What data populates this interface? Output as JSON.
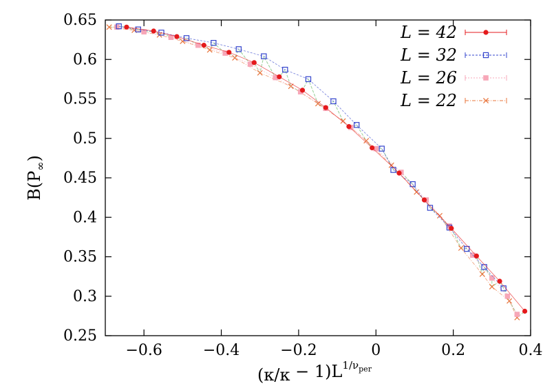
{
  "chart_data": {
    "type": "scatter",
    "xlabel": "(κ/κper − 1)L1/νper",
    "xlabel_parts": {
      "open": "(κ/κ",
      "sub1": "per",
      "mid": " − 1)L",
      "sup": "1/ν",
      "supsub": "per"
    },
    "ylabel": "B(P∞)",
    "ylabel_parts": {
      "main": "B(P",
      "sub": "∞",
      "close": ")"
    },
    "xlim": [
      -0.7,
      0.4
    ],
    "ylim": [
      0.25,
      0.65
    ],
    "xticks": [
      "−0.6",
      "−0.4",
      "−0.2",
      "0",
      "0.2",
      "0.4"
    ],
    "xtick_values": [
      -0.6,
      -0.4,
      -0.2,
      0,
      0.2,
      0.4
    ],
    "yticks": [
      "0.25",
      "0.3",
      "0.35",
      "0.4",
      "0.45",
      "0.5",
      "0.55",
      "0.6",
      "0.65"
    ],
    "ytick_values": [
      0.25,
      0.3,
      0.35,
      0.4,
      0.45,
      0.5,
      0.55,
      0.6,
      0.65
    ],
    "grid": false,
    "legend_position": "top-right",
    "series": [
      {
        "name": "L = 42",
        "color": "#e41a1c",
        "marker": "filled-circle",
        "x": [
          -0.645,
          -0.575,
          -0.515,
          -0.445,
          -0.38,
          -0.315,
          -0.25,
          -0.19,
          -0.13,
          -0.07,
          -0.01,
          0.06,
          0.125,
          0.195,
          0.26,
          0.32,
          0.385
        ],
        "y": [
          0.641,
          0.636,
          0.629,
          0.618,
          0.609,
          0.596,
          0.578,
          0.561,
          0.539,
          0.515,
          0.488,
          0.456,
          0.422,
          0.386,
          0.351,
          0.319,
          0.281
        ]
      },
      {
        "name": "L = 32",
        "color": "#3344cc",
        "marker": "open-square",
        "x": [
          -0.665,
          -0.615,
          -0.555,
          -0.49,
          -0.42,
          -0.355,
          -0.29,
          -0.235,
          -0.175,
          -0.11,
          -0.05,
          0.015,
          0.045,
          0.095,
          0.14,
          0.19,
          0.235,
          0.28,
          0.33
        ],
        "y": [
          0.642,
          0.638,
          0.634,
          0.627,
          0.621,
          0.613,
          0.604,
          0.587,
          0.575,
          0.547,
          0.517,
          0.487,
          0.46,
          0.442,
          0.412,
          0.387,
          0.36,
          0.337,
          0.31
        ]
      },
      {
        "name": "L = 26",
        "color": "#f7a7b8",
        "marker": "filled-square",
        "x": [
          -0.67,
          -0.6,
          -0.53,
          -0.46,
          -0.39,
          -0.325,
          -0.26,
          -0.195,
          -0.13,
          -0.065,
          0.0,
          0.065,
          0.13,
          0.19,
          0.25,
          0.3,
          0.34,
          0.365
        ],
        "y": [
          0.641,
          0.635,
          0.628,
          0.618,
          0.608,
          0.594,
          0.577,
          0.559,
          0.538,
          0.514,
          0.487,
          0.457,
          0.422,
          0.389,
          0.352,
          0.323,
          0.3,
          0.277
        ]
      },
      {
        "name": "L = 22",
        "color": "#e8743b",
        "marker": "cross",
        "x": [
          -0.69,
          -0.625,
          -0.56,
          -0.5,
          -0.43,
          -0.365,
          -0.3,
          -0.22,
          -0.15,
          -0.085,
          -0.025,
          0.04,
          0.105,
          0.165,
          0.22,
          0.275,
          0.3,
          0.345,
          0.365
        ],
        "y": [
          0.641,
          0.637,
          0.631,
          0.623,
          0.612,
          0.602,
          0.583,
          0.566,
          0.544,
          0.522,
          0.497,
          0.466,
          0.432,
          0.402,
          0.361,
          0.328,
          0.312,
          0.294,
          0.273
        ]
      }
    ]
  }
}
